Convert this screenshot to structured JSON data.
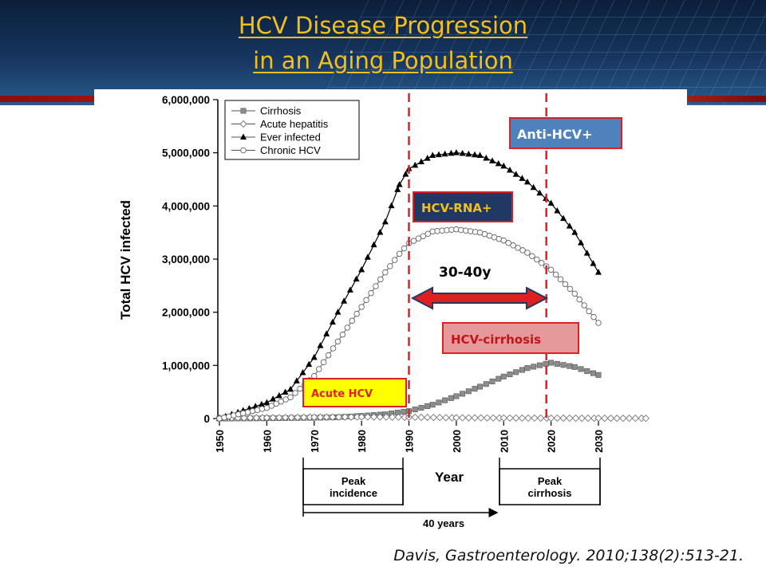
{
  "slide": {
    "title_lines": [
      "HCV Disease Progression",
      "in an Aging Population"
    ],
    "citation": "Davis, Gastroenterology. 2010;138(2):513-21."
  },
  "colors": {
    "title": "#f3c01a",
    "dashed_lines": "#e02020",
    "anti_hcv_box": "#4f81bd",
    "hcv_rna_box": "#1f3864",
    "hcv_rna_text": "#f3c01a",
    "cirrhosis_box": "#e6999a",
    "acute_box": "#ffff00",
    "acute_text": "#e02020",
    "arrow": "#e02020"
  },
  "annotations": {
    "anti_hcv": "Anti-HCV+",
    "hcv_rna": "HCV-RNA+",
    "interval": "30-40y",
    "hcv_cirrhosis": "HCV-cirrhosis",
    "acute_hcv": "Acute HCV",
    "peak_incidence": [
      "Peak",
      "incidence"
    ],
    "peak_cirrhosis": [
      "Peak",
      "cirrhosis"
    ],
    "forty_years": "40 years"
  },
  "chart_data": {
    "type": "line",
    "xlabel": "Year",
    "ylabel": "Total HCV infected",
    "xlim": [
      1950,
      2030
    ],
    "ylim": [
      0,
      6000000
    ],
    "x_ticks": [
      "1950",
      "1960",
      "1970",
      "1980",
      "1990",
      "2000",
      "2010",
      "2020",
      "2030"
    ],
    "y_ticks": [
      "0",
      "1,000,000",
      "2,000,000",
      "3,000,000",
      "4,000,000",
      "5,000,000",
      "6,000,000"
    ],
    "legend_position": "top-left",
    "grid": false,
    "vertical_markers": [
      1990,
      2019
    ],
    "series": [
      {
        "name": "Cirrhosis",
        "marker": "square",
        "x": [
          1950,
          1960,
          1970,
          1975,
          1980,
          1985,
          1990,
          1995,
          2000,
          2005,
          2010,
          2015,
          2020,
          2025,
          2030
        ],
        "y": [
          0,
          5000,
          15000,
          25000,
          50000,
          80000,
          140000,
          260000,
          420000,
          600000,
          790000,
          950000,
          1050000,
          970000,
          820000
        ]
      },
      {
        "name": "Acute hepatitis",
        "marker": "diamond-open",
        "x": [
          1950,
          1960,
          1970,
          1980,
          1990,
          2000,
          2010,
          2020,
          2030,
          2040
        ],
        "y": [
          10000,
          15000,
          25000,
          30000,
          25000,
          15000,
          10000,
          8000,
          6000,
          5000
        ]
      },
      {
        "name": "Ever infected",
        "marker": "triangle",
        "x": [
          1950,
          1955,
          1960,
          1965,
          1970,
          1975,
          1980,
          1985,
          1988,
          1990,
          1995,
          2000,
          2005,
          2010,
          2015,
          2020,
          2025,
          2030
        ],
        "y": [
          0,
          150000,
          300000,
          550000,
          1150000,
          2000000,
          2800000,
          3700000,
          4400000,
          4700000,
          4950000,
          5000000,
          4950000,
          4750000,
          4450000,
          4050000,
          3500000,
          2750000
        ]
      },
      {
        "name": "Chronic HCV",
        "marker": "circle-open",
        "x": [
          1950,
          1955,
          1960,
          1965,
          1970,
          1975,
          1980,
          1985,
          1988,
          1990,
          1995,
          2000,
          2005,
          2010,
          2015,
          2020,
          2025,
          2030
        ],
        "y": [
          0,
          100000,
          200000,
          400000,
          800000,
          1450000,
          2100000,
          2750000,
          3100000,
          3300000,
          3520000,
          3560000,
          3500000,
          3350000,
          3120000,
          2800000,
          2350000,
          1800000
        ]
      }
    ]
  }
}
